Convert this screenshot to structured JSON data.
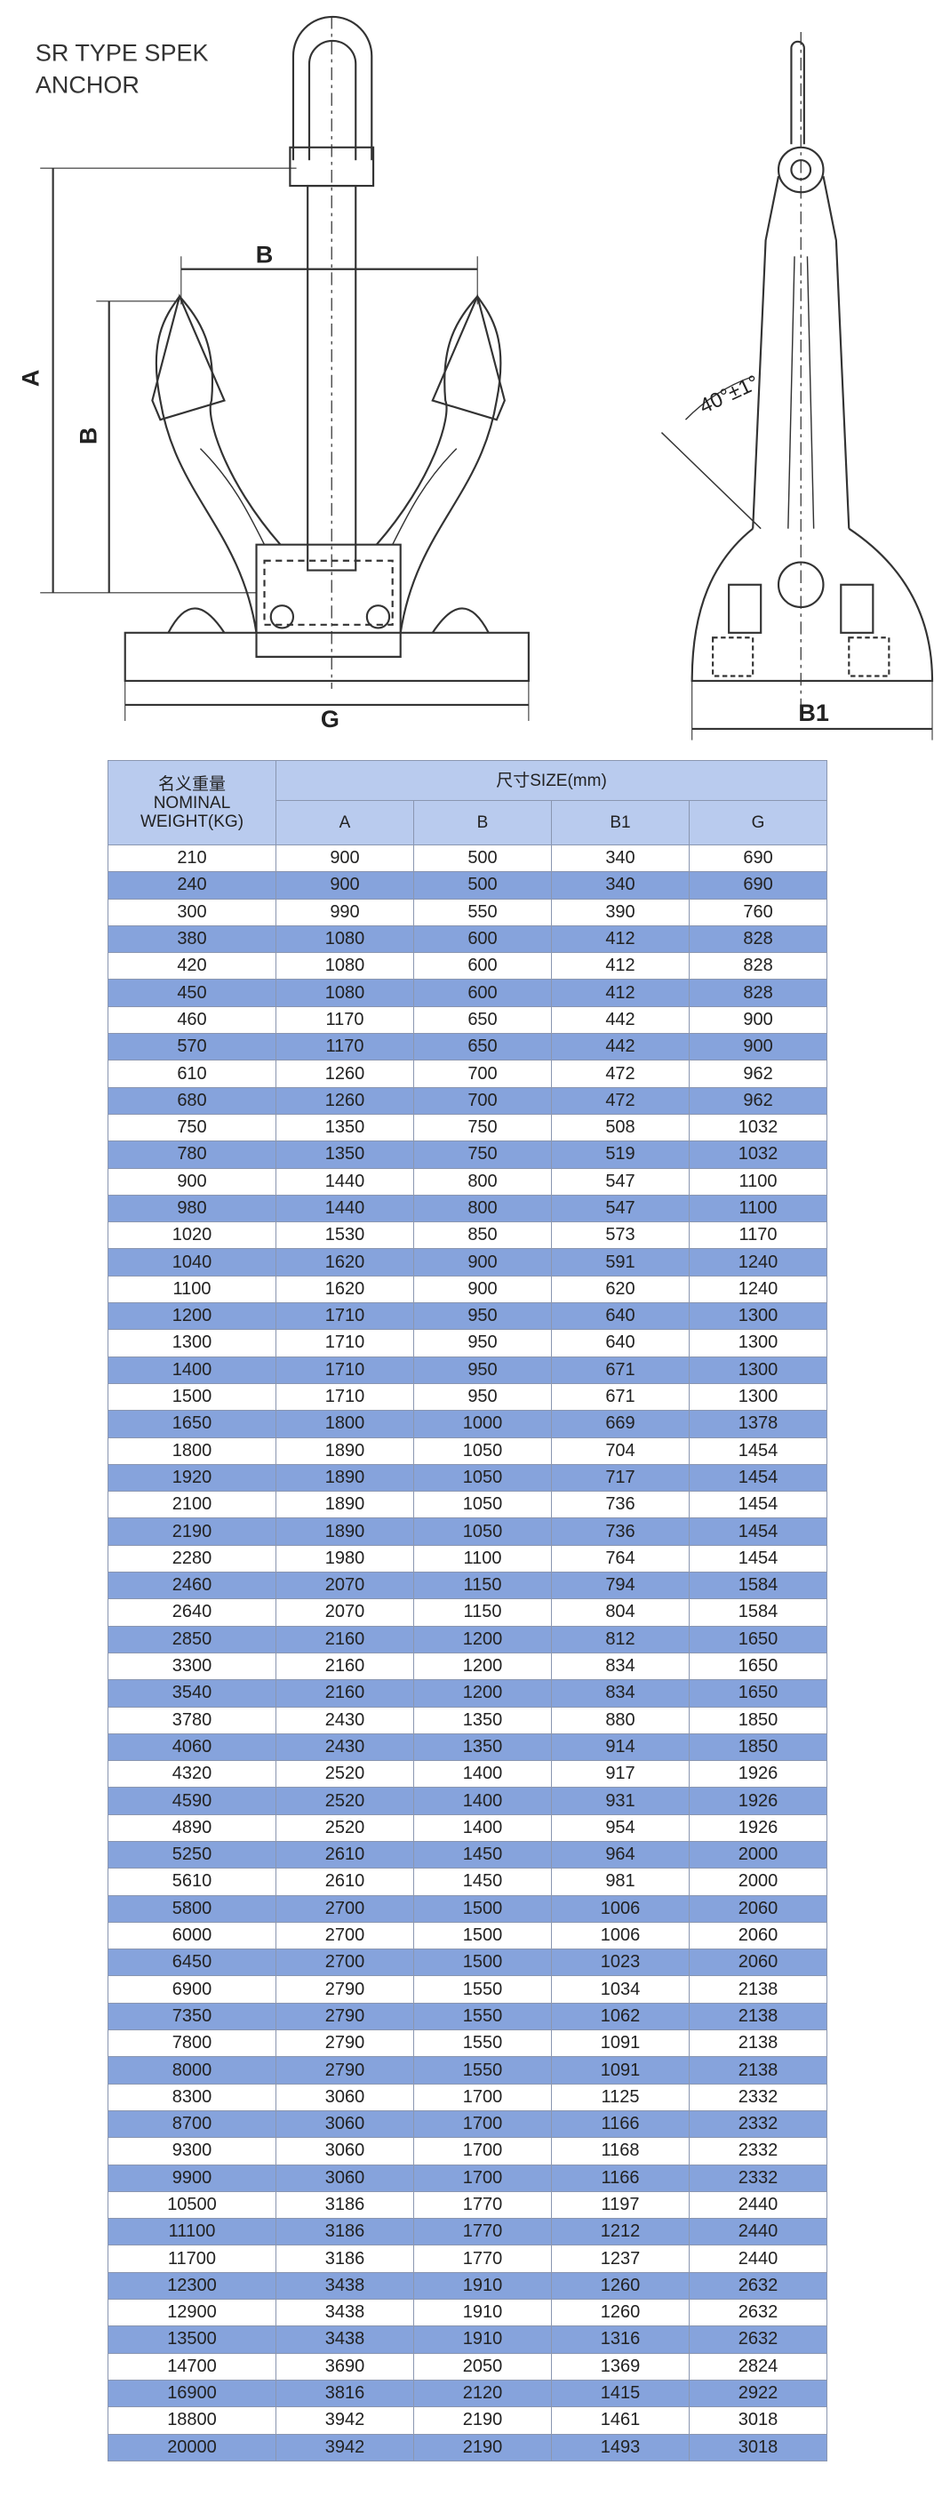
{
  "header": {
    "title_line1": "SR TYPE SPEK",
    "title_line2": "ANCHOR"
  },
  "drawing": {
    "label_a": "A",
    "label_b_top": "B",
    "label_b_side": "B",
    "label_g": "G",
    "label_angle": "40°±1°",
    "label_b1": "B1"
  },
  "table": {
    "header_weight": [
      "名义重量",
      "NOMINAL",
      "WEIGHT(KG)"
    ],
    "header_size": "尺寸SIZE(mm)",
    "columns": [
      "A",
      "B",
      "B1",
      "G"
    ],
    "rows": [
      [
        210,
        900,
        500,
        340,
        690
      ],
      [
        240,
        900,
        500,
        340,
        690
      ],
      [
        300,
        990,
        550,
        390,
        760
      ],
      [
        380,
        1080,
        600,
        412,
        828
      ],
      [
        420,
        1080,
        600,
        412,
        828
      ],
      [
        450,
        1080,
        600,
        412,
        828
      ],
      [
        460,
        1170,
        650,
        442,
        900
      ],
      [
        570,
        1170,
        650,
        442,
        900
      ],
      [
        610,
        1260,
        700,
        472,
        962
      ],
      [
        680,
        1260,
        700,
        472,
        962
      ],
      [
        750,
        1350,
        750,
        508,
        1032
      ],
      [
        780,
        1350,
        750,
        519,
        1032
      ],
      [
        900,
        1440,
        800,
        547,
        1100
      ],
      [
        980,
        1440,
        800,
        547,
        1100
      ],
      [
        1020,
        1530,
        850,
        573,
        1170
      ],
      [
        1040,
        1620,
        900,
        591,
        1240
      ],
      [
        1100,
        1620,
        900,
        620,
        1240
      ],
      [
        1200,
        1710,
        950,
        640,
        1300
      ],
      [
        1300,
        1710,
        950,
        640,
        1300
      ],
      [
        1400,
        1710,
        950,
        671,
        1300
      ],
      [
        1500,
        1710,
        950,
        671,
        1300
      ],
      [
        1650,
        1800,
        1000,
        669,
        1378
      ],
      [
        1800,
        1890,
        1050,
        704,
        1454
      ],
      [
        1920,
        1890,
        1050,
        717,
        1454
      ],
      [
        2100,
        1890,
        1050,
        736,
        1454
      ],
      [
        2190,
        1890,
        1050,
        736,
        1454
      ],
      [
        2280,
        1980,
        1100,
        764,
        1454
      ],
      [
        2460,
        2070,
        1150,
        794,
        1584
      ],
      [
        2640,
        2070,
        1150,
        804,
        1584
      ],
      [
        2850,
        2160,
        1200,
        812,
        1650
      ],
      [
        3300,
        2160,
        1200,
        834,
        1650
      ],
      [
        3540,
        2160,
        1200,
        834,
        1650
      ],
      [
        3780,
        2430,
        1350,
        880,
        1850
      ],
      [
        4060,
        2430,
        1350,
        914,
        1850
      ],
      [
        4320,
        2520,
        1400,
        917,
        1926
      ],
      [
        4590,
        2520,
        1400,
        931,
        1926
      ],
      [
        4890,
        2520,
        1400,
        954,
        1926
      ],
      [
        5250,
        2610,
        1450,
        964,
        2000
      ],
      [
        5610,
        2610,
        1450,
        981,
        2000
      ],
      [
        5800,
        2700,
        1500,
        1006,
        2060
      ],
      [
        6000,
        2700,
        1500,
        1006,
        2060
      ],
      [
        6450,
        2700,
        1500,
        1023,
        2060
      ],
      [
        6900,
        2790,
        1550,
        1034,
        2138
      ],
      [
        7350,
        2790,
        1550,
        1062,
        2138
      ],
      [
        7800,
        2790,
        1550,
        1091,
        2138
      ],
      [
        8000,
        2790,
        1550,
        1091,
        2138
      ],
      [
        8300,
        3060,
        1700,
        1125,
        2332
      ],
      [
        8700,
        3060,
        1700,
        1166,
        2332
      ],
      [
        9300,
        3060,
        1700,
        1168,
        2332
      ],
      [
        9900,
        3060,
        1700,
        1166,
        2332
      ],
      [
        10500,
        3186,
        1770,
        1197,
        2440
      ],
      [
        11100,
        3186,
        1770,
        1212,
        2440
      ],
      [
        11700,
        3186,
        1770,
        1237,
        2440
      ],
      [
        12300,
        3438,
        1910,
        1260,
        2632
      ],
      [
        12900,
        3438,
        1910,
        1260,
        2632
      ],
      [
        13500,
        3438,
        1910,
        1316,
        2632
      ],
      [
        14700,
        3690,
        2050,
        1369,
        2824
      ],
      [
        16900,
        3816,
        2120,
        1415,
        2922
      ],
      [
        18800,
        3942,
        2190,
        1461,
        3018
      ],
      [
        20000,
        3942,
        2190,
        1493,
        3018
      ]
    ]
  }
}
